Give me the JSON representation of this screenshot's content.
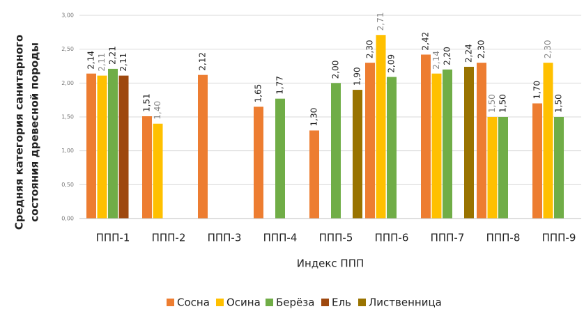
{
  "chart_data": {
    "type": "bar",
    "y_label": [
      "Средняя категория санитарного",
      "состояния древесной породы"
    ],
    "x_label": "Индекс ППП",
    "categories": [
      "ППП-1",
      "ППП-2",
      "ППП-3",
      "ППП-4",
      "ППП-5",
      "ППП-6",
      "ППП-7",
      "ППП-8",
      "ППП-9"
    ],
    "series": [
      {
        "name": "Сосна",
        "color": "#ED7D31",
        "values": [
          2.14,
          1.51,
          2.12,
          1.65,
          1.3,
          2.3,
          2.42,
          2.3,
          1.7
        ],
        "value_labels": [
          "2,14",
          "1,51",
          "2,12",
          "1,65",
          "1,30",
          "2,30",
          "2,42",
          "2,30",
          "1,70"
        ]
      },
      {
        "name": "Осина",
        "color": "#FFC000",
        "values": [
          2.11,
          1.4,
          null,
          null,
          null,
          2.71,
          2.14,
          1.5,
          2.3
        ],
        "value_labels": [
          "2,11",
          "1,40",
          null,
          null,
          null,
          "2,71",
          "2,14",
          "1,50",
          "2,30"
        ]
      },
      {
        "name": "Берёза",
        "color": "#70AD47",
        "values": [
          2.21,
          null,
          null,
          1.77,
          2.0,
          2.09,
          2.2,
          1.5,
          1.5
        ],
        "value_labels": [
          "2,21",
          null,
          null,
          "1,77",
          "2,00",
          "2,09",
          "2,20",
          "1,50",
          "1,50"
        ]
      },
      {
        "name": "Ель",
        "color": "#9E480E",
        "values": [
          2.11,
          null,
          null,
          null,
          null,
          null,
          null,
          null,
          null
        ],
        "value_labels": [
          "2,11",
          null,
          null,
          null,
          null,
          null,
          null,
          null,
          null
        ]
      },
      {
        "name": "Лиственница",
        "color": "#997300",
        "values": [
          null,
          null,
          null,
          null,
          1.9,
          null,
          2.24,
          null,
          null
        ],
        "value_labels": [
          null,
          null,
          null,
          null,
          "1,90",
          null,
          "2,24",
          null,
          null
        ]
      }
    ],
    "ylim": [
      0,
      3
    ],
    "yticks": [
      {
        "value": 0,
        "label": "0,00"
      },
      {
        "value": 0.5,
        "label": "0,50"
      },
      {
        "value": 1,
        "label": "1,00"
      },
      {
        "value": 1.5,
        "label": "1,50"
      },
      {
        "value": 2,
        "label": "2,00"
      },
      {
        "value": 2.5,
        "label": "2,50"
      },
      {
        "value": 3,
        "label": "3,00"
      }
    ],
    "grid": true
  }
}
